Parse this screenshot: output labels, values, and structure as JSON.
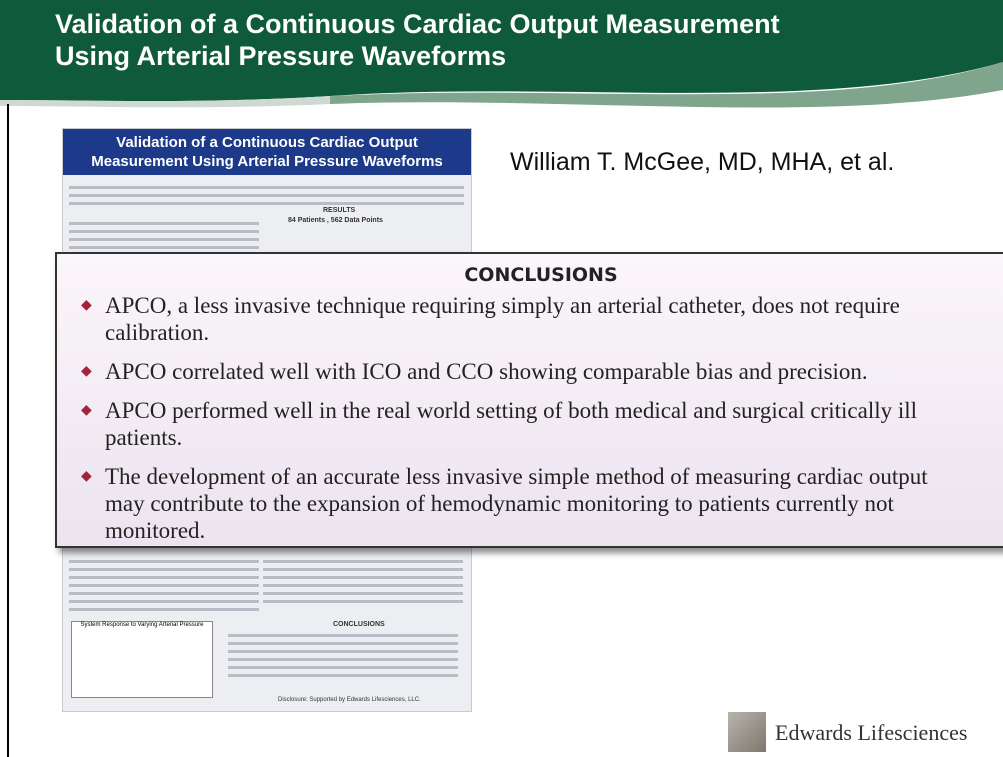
{
  "header": {
    "title_lines": [
      "Validation of a Continuous Cardiac Output Measurement",
      "Using Arterial Pressure Waveforms"
    ]
  },
  "author": "William T. McGee, MD, MHA, et al.",
  "poster": {
    "title_lines": [
      "Validation of a Continuous Cardiac Output",
      "Measurement Using Arterial Pressure Waveforms"
    ],
    "results_heading": "RESULTS",
    "results_subtitle": "84 Patients , 562 Data Points",
    "figure_caption": "System Response to Varying Arterial Pressure",
    "conclusions_heading": "CONCLUSIONS",
    "disclosure": "Disclosure: Supported by Edwards Lifesciences, LLC."
  },
  "conclusions": {
    "heading": "CONCLUSIONS",
    "items": [
      "APCO, a less invasive technique requiring simply an arterial catheter, does not require calibration.",
      "APCO correlated well with ICO and CCO showing comparable bias and precision.",
      "APCO performed well in the real world setting of both medical and surgical critically ill patients.",
      "The development of an accurate less invasive simple method of measuring cardiac output may contribute to the expansion of hemodynamic monitoring to patients currently not monitored."
    ]
  },
  "logo": {
    "text": "Edwards Lifesciences"
  }
}
